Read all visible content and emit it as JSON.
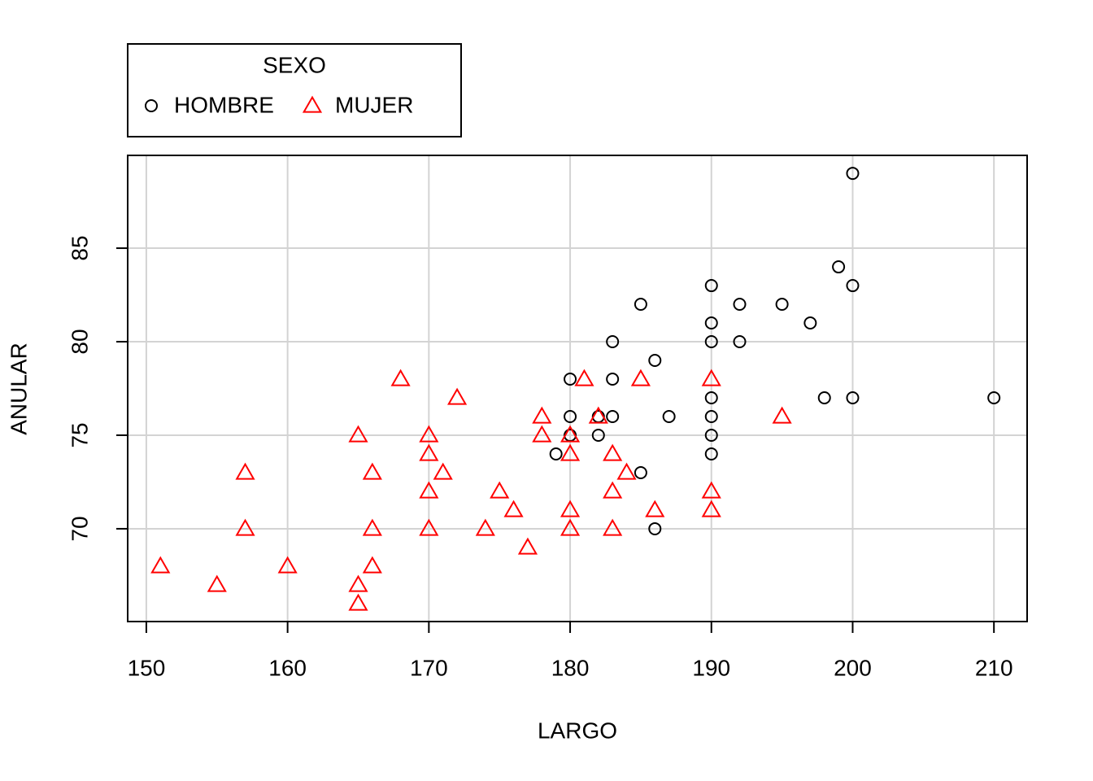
{
  "chart_data": {
    "type": "scatter",
    "xlabel": "LARGO",
    "ylabel": "ANULAR",
    "legend_title": "SEXO",
    "legend": "top-left",
    "grid": true,
    "xlim": [
      148.68,
      212.35
    ],
    "ylim": [
      65.04,
      89.96
    ],
    "xticks": [
      150,
      160,
      170,
      180,
      190,
      200,
      210
    ],
    "yticks": [
      70,
      75,
      80,
      85
    ],
    "series": [
      {
        "name": "HOMBRE",
        "color": "#000000",
        "marker": "circle",
        "x": [
          200,
          199,
          190,
          200,
          185,
          192,
          195,
          190,
          197,
          183,
          190,
          192,
          186,
          180,
          183,
          198,
          200,
          210,
          190,
          180,
          183,
          187,
          190,
          182,
          180,
          182,
          190,
          179,
          190,
          185,
          186
        ],
        "values": [
          89,
          84,
          83,
          83,
          82,
          82,
          82,
          81,
          81,
          80,
          80,
          80,
          79,
          78,
          78,
          77,
          77,
          77,
          77,
          76,
          76,
          76,
          76,
          76,
          75,
          75,
          75,
          74,
          74,
          73,
          70
        ]
      },
      {
        "name": "MUJER",
        "color": "#ff0000",
        "marker": "triangle",
        "x": [
          168,
          181,
          185,
          190,
          172,
          178,
          182,
          195,
          165,
          170,
          178,
          180,
          170,
          180,
          183,
          157,
          166,
          171,
          184,
          170,
          175,
          183,
          190,
          176,
          180,
          186,
          190,
          157,
          166,
          170,
          174,
          180,
          183,
          177,
          151,
          160,
          166,
          155,
          165,
          165
        ],
        "values": [
          78,
          78,
          78,
          78,
          77,
          76,
          76,
          76,
          75,
          75,
          75,
          75,
          74,
          74,
          74,
          73,
          73,
          73,
          73,
          72,
          72,
          72,
          72,
          71,
          71,
          71,
          71,
          70,
          70,
          70,
          70,
          70,
          70,
          69,
          68,
          68,
          68,
          67,
          67,
          66
        ]
      }
    ]
  }
}
